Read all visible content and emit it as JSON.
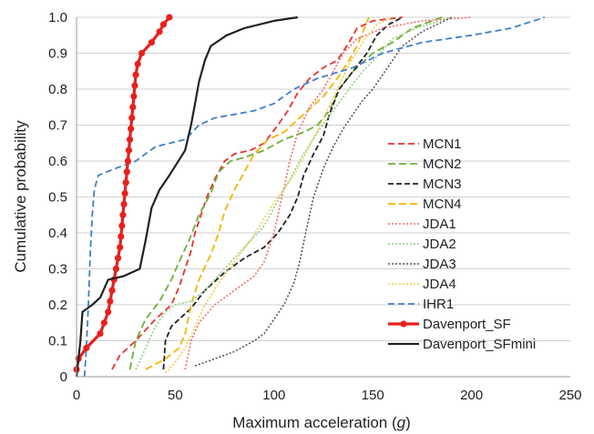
{
  "chart_data": {
    "type": "line",
    "title": "",
    "xlabel_prefix": "Maximum acceleration (",
    "xlabel_unit": "g",
    "xlabel_suffix": ")",
    "ylabel": "Cumulative probability",
    "xlim": [
      0,
      250
    ],
    "ylim": [
      0,
      1.0
    ],
    "xticks": [
      0,
      50,
      100,
      150,
      200,
      250
    ],
    "yticks": [
      0,
      0.1,
      0.2,
      0.3,
      0.4,
      0.5,
      0.6,
      0.7,
      0.8,
      0.9,
      1.0
    ],
    "ytick_labels": [
      "0",
      "0.1",
      "0.2",
      "0.3",
      "0.4",
      "0.5",
      "0.6",
      "0.7",
      "0.8",
      "0.9",
      "1.0"
    ],
    "grid": "horizontal",
    "legend_position": "bottom-right",
    "series": [
      {
        "name": "MCN1",
        "color": "#e8322b",
        "dash": "7,4",
        "width": 1.8,
        "points": [
          [
            18,
            0.02
          ],
          [
            22,
            0.06
          ],
          [
            30,
            0.1
          ],
          [
            40,
            0.16
          ],
          [
            48,
            0.2
          ],
          [
            52,
            0.25
          ],
          [
            55,
            0.3
          ],
          [
            58,
            0.35
          ],
          [
            60,
            0.4
          ],
          [
            63,
            0.45
          ],
          [
            66,
            0.5
          ],
          [
            70,
            0.55
          ],
          [
            75,
            0.6
          ],
          [
            80,
            0.62
          ],
          [
            88,
            0.63
          ],
          [
            95,
            0.65
          ],
          [
            102,
            0.7
          ],
          [
            107,
            0.74
          ],
          [
            112,
            0.79
          ],
          [
            118,
            0.83
          ],
          [
            125,
            0.86
          ],
          [
            132,
            0.88
          ],
          [
            138,
            0.93
          ],
          [
            142,
            0.97
          ],
          [
            150,
            0.99
          ],
          [
            165,
            1.0
          ]
        ]
      },
      {
        "name": "MCN2",
        "color": "#6fae3a",
        "dash": "8,4",
        "width": 1.8,
        "points": [
          [
            27,
            0.02
          ],
          [
            30,
            0.1
          ],
          [
            35,
            0.16
          ],
          [
            42,
            0.21
          ],
          [
            48,
            0.27
          ],
          [
            52,
            0.32
          ],
          [
            57,
            0.38
          ],
          [
            62,
            0.45
          ],
          [
            68,
            0.51
          ],
          [
            72,
            0.57
          ],
          [
            78,
            0.6
          ],
          [
            85,
            0.61
          ],
          [
            95,
            0.63
          ],
          [
            105,
            0.66
          ],
          [
            115,
            0.68
          ],
          [
            122,
            0.7
          ],
          [
            128,
            0.74
          ],
          [
            133,
            0.8
          ],
          [
            140,
            0.85
          ],
          [
            150,
            0.9
          ],
          [
            160,
            0.93
          ],
          [
            170,
            0.97
          ],
          [
            185,
            1.0
          ]
        ]
      },
      {
        "name": "MCN3",
        "color": "#222222",
        "dash": "6,3",
        "width": 1.8,
        "points": [
          [
            44,
            0.02
          ],
          [
            45,
            0.1
          ],
          [
            48,
            0.14
          ],
          [
            52,
            0.16
          ],
          [
            58,
            0.19
          ],
          [
            65,
            0.24
          ],
          [
            75,
            0.29
          ],
          [
            85,
            0.33
          ],
          [
            95,
            0.36
          ],
          [
            102,
            0.4
          ],
          [
            108,
            0.45
          ],
          [
            112,
            0.5
          ],
          [
            115,
            0.56
          ],
          [
            120,
            0.62
          ],
          [
            125,
            0.67
          ],
          [
            128,
            0.73
          ],
          [
            133,
            0.8
          ],
          [
            140,
            0.85
          ],
          [
            147,
            0.9
          ],
          [
            152,
            0.95
          ],
          [
            158,
            0.98
          ],
          [
            165,
            1.0
          ]
        ]
      },
      {
        "name": "MCN4",
        "color": "#f5b400",
        "dash": "8,4",
        "width": 1.8,
        "points": [
          [
            35,
            0.02
          ],
          [
            45,
            0.05
          ],
          [
            52,
            0.08
          ],
          [
            55,
            0.12
          ],
          [
            58,
            0.2
          ],
          [
            62,
            0.27
          ],
          [
            68,
            0.34
          ],
          [
            72,
            0.4
          ],
          [
            75,
            0.46
          ],
          [
            80,
            0.52
          ],
          [
            85,
            0.57
          ],
          [
            90,
            0.62
          ],
          [
            97,
            0.66
          ],
          [
            105,
            0.68
          ],
          [
            115,
            0.73
          ],
          [
            125,
            0.78
          ],
          [
            132,
            0.83
          ],
          [
            138,
            0.88
          ],
          [
            142,
            0.92
          ],
          [
            145,
            0.96
          ],
          [
            148,
            1.0
          ]
        ]
      },
      {
        "name": "JDA1",
        "color": "#f06a6a",
        "dash": "2,2",
        "width": 1.6,
        "points": [
          [
            55,
            0.02
          ],
          [
            58,
            0.1
          ],
          [
            62,
            0.15
          ],
          [
            70,
            0.2
          ],
          [
            80,
            0.24
          ],
          [
            90,
            0.28
          ],
          [
            95,
            0.32
          ],
          [
            100,
            0.4
          ],
          [
            104,
            0.5
          ],
          [
            108,
            0.6
          ],
          [
            112,
            0.68
          ],
          [
            118,
            0.75
          ],
          [
            125,
            0.8
          ],
          [
            130,
            0.85
          ],
          [
            135,
            0.9
          ],
          [
            142,
            0.94
          ],
          [
            155,
            0.97
          ],
          [
            175,
            0.99
          ],
          [
            200,
            1.0
          ]
        ]
      },
      {
        "name": "JDA2",
        "color": "#8ccf7e",
        "dash": "2,2",
        "width": 1.6,
        "points": [
          [
            30,
            0.02
          ],
          [
            35,
            0.08
          ],
          [
            40,
            0.14
          ],
          [
            45,
            0.18
          ],
          [
            50,
            0.2
          ],
          [
            58,
            0.21
          ],
          [
            65,
            0.24
          ],
          [
            75,
            0.3
          ],
          [
            85,
            0.36
          ],
          [
            95,
            0.42
          ],
          [
            103,
            0.5
          ],
          [
            110,
            0.57
          ],
          [
            115,
            0.62
          ],
          [
            122,
            0.68
          ],
          [
            130,
            0.74
          ],
          [
            138,
            0.8
          ],
          [
            145,
            0.85
          ],
          [
            152,
            0.89
          ],
          [
            160,
            0.94
          ],
          [
            172,
            0.97
          ],
          [
            190,
            1.0
          ]
        ]
      },
      {
        "name": "JDA3",
        "color": "#555555",
        "dash": "2,2",
        "width": 1.6,
        "points": [
          [
            60,
            0.03
          ],
          [
            70,
            0.05
          ],
          [
            80,
            0.07
          ],
          [
            90,
            0.1
          ],
          [
            95,
            0.12
          ],
          [
            100,
            0.16
          ],
          [
            105,
            0.2
          ],
          [
            110,
            0.26
          ],
          [
            113,
            0.32
          ],
          [
            116,
            0.4
          ],
          [
            120,
            0.5
          ],
          [
            125,
            0.58
          ],
          [
            130,
            0.64
          ],
          [
            135,
            0.69
          ],
          [
            140,
            0.73
          ],
          [
            145,
            0.77
          ],
          [
            150,
            0.8
          ],
          [
            155,
            0.84
          ],
          [
            160,
            0.88
          ],
          [
            165,
            0.92
          ],
          [
            175,
            0.96
          ],
          [
            190,
            1.0
          ]
        ]
      },
      {
        "name": "JDA4",
        "color": "#f7c948",
        "dash": "2,2",
        "width": 1.6,
        "points": [
          [
            45,
            0.01
          ],
          [
            50,
            0.04
          ],
          [
            55,
            0.08
          ],
          [
            60,
            0.14
          ],
          [
            65,
            0.2
          ],
          [
            72,
            0.26
          ],
          [
            80,
            0.32
          ],
          [
            88,
            0.38
          ],
          [
            95,
            0.44
          ],
          [
            102,
            0.5
          ],
          [
            110,
            0.56
          ],
          [
            118,
            0.64
          ],
          [
            125,
            0.72
          ],
          [
            132,
            0.8
          ],
          [
            138,
            0.87
          ],
          [
            145,
            0.93
          ],
          [
            152,
            0.98
          ],
          [
            160,
            1.0
          ]
        ]
      },
      {
        "name": "IHR1",
        "color": "#3f7fc8",
        "dash": "7,4",
        "width": 1.8,
        "points": [
          [
            4,
            0.0
          ],
          [
            5,
            0.08
          ],
          [
            6,
            0.2
          ],
          [
            7,
            0.35
          ],
          [
            8,
            0.45
          ],
          [
            9,
            0.52
          ],
          [
            11,
            0.56
          ],
          [
            20,
            0.58
          ],
          [
            30,
            0.6
          ],
          [
            40,
            0.64
          ],
          [
            55,
            0.66
          ],
          [
            62,
            0.7
          ],
          [
            70,
            0.72
          ],
          [
            90,
            0.74
          ],
          [
            100,
            0.76
          ],
          [
            110,
            0.8
          ],
          [
            122,
            0.83
          ],
          [
            140,
            0.86
          ],
          [
            155,
            0.9
          ],
          [
            175,
            0.93
          ],
          [
            200,
            0.95
          ],
          [
            220,
            0.97
          ],
          [
            237,
            1.0
          ]
        ]
      },
      {
        "name": "Davenport_SF",
        "color": "#e8201c",
        "dash": "",
        "width": 3.2,
        "markers": true,
        "points": [
          [
            0,
            0.02
          ],
          [
            1,
            0.05
          ],
          [
            5,
            0.08
          ],
          [
            12,
            0.12
          ],
          [
            14,
            0.15
          ],
          [
            16,
            0.18
          ],
          [
            17,
            0.21
          ],
          [
            18,
            0.24
          ],
          [
            19,
            0.27
          ],
          [
            20,
            0.3
          ],
          [
            21,
            0.33
          ],
          [
            22,
            0.36
          ],
          [
            22.5,
            0.39
          ],
          [
            23,
            0.42
          ],
          [
            23.5,
            0.45
          ],
          [
            24,
            0.48
          ],
          [
            24.5,
            0.51
          ],
          [
            25,
            0.54
          ],
          [
            25.5,
            0.57
          ],
          [
            26,
            0.6
          ],
          [
            26.5,
            0.63
          ],
          [
            27,
            0.66
          ],
          [
            27.5,
            0.69
          ],
          [
            28,
            0.72
          ],
          [
            28.5,
            0.75
          ],
          [
            29,
            0.78
          ],
          [
            29.5,
            0.81
          ],
          [
            30,
            0.84
          ],
          [
            31,
            0.87
          ],
          [
            33,
            0.9
          ],
          [
            38,
            0.93
          ],
          [
            42,
            0.96
          ],
          [
            44,
            0.98
          ],
          [
            47,
            1.0
          ]
        ]
      },
      {
        "name": "Davenport_SFmini",
        "color": "#222222",
        "dash": "",
        "width": 2.2,
        "points": [
          [
            0,
            0.0
          ],
          [
            2,
            0.1
          ],
          [
            3,
            0.18
          ],
          [
            8,
            0.2
          ],
          [
            12,
            0.22
          ],
          [
            16,
            0.27
          ],
          [
            24,
            0.28
          ],
          [
            32,
            0.3
          ],
          [
            35,
            0.38
          ],
          [
            38,
            0.47
          ],
          [
            42,
            0.52
          ],
          [
            47,
            0.56
          ],
          [
            55,
            0.63
          ],
          [
            58,
            0.7
          ],
          [
            60,
            0.76
          ],
          [
            62,
            0.82
          ],
          [
            65,
            0.88
          ],
          [
            68,
            0.92
          ],
          [
            76,
            0.95
          ],
          [
            85,
            0.97
          ],
          [
            100,
            0.99
          ],
          [
            112,
            1.0
          ]
        ]
      }
    ]
  }
}
